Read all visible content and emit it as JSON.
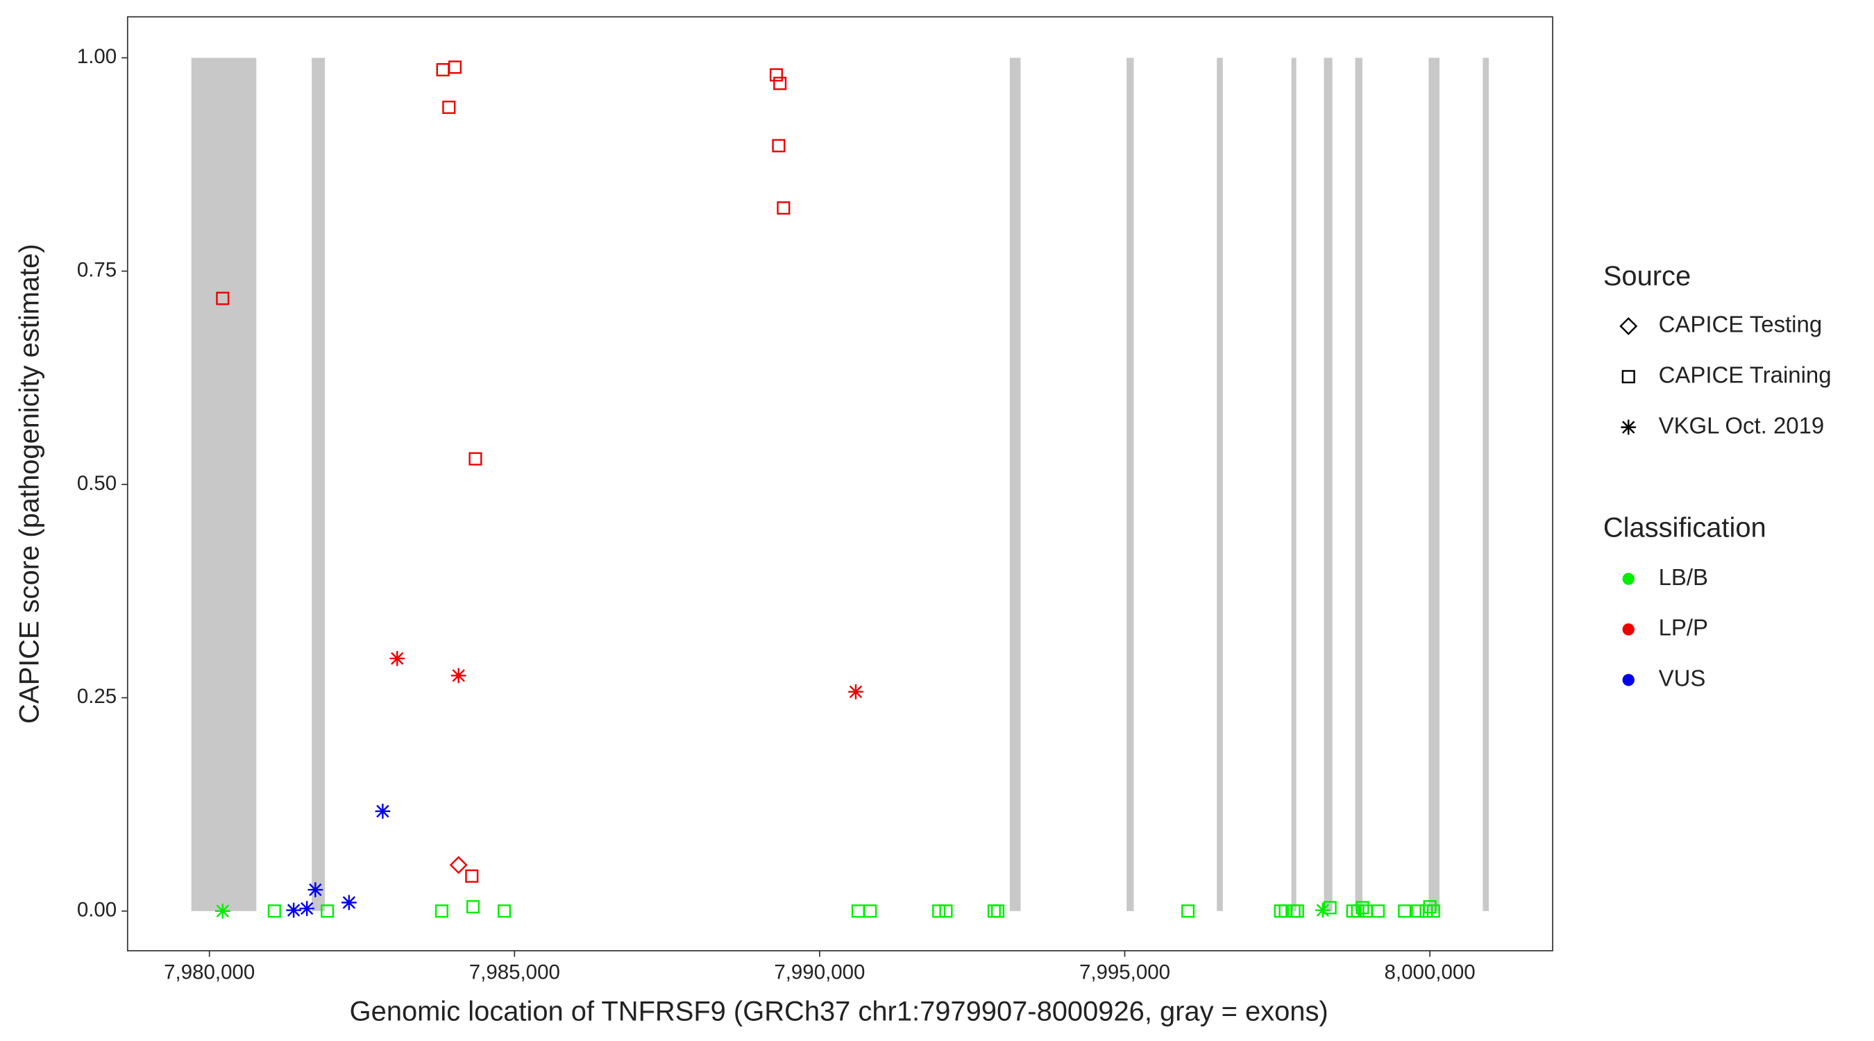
{
  "chart_data": {
    "type": "scatter",
    "x_label": "Genomic location of TNFRSF9 (GRCh37 chr1:7979907-8000926, gray = exons)",
    "y_label": "CAPICE score (pathogenicity estimate)",
    "xlim": [
      7978659,
      8002012
    ],
    "ylim": [
      -0.0465,
      1.048
    ],
    "xticks": [
      {
        "value": 7980000,
        "label": "7,980,000"
      },
      {
        "value": 7985000,
        "label": "7,985,000"
      },
      {
        "value": 7990000,
        "label": "7,990,000"
      },
      {
        "value": 7995000,
        "label": "7,995,000"
      },
      {
        "value": 8000000,
        "label": "8,000,000"
      }
    ],
    "yticks": [
      {
        "value": 0,
        "label": "0.00"
      },
      {
        "value": 0.25,
        "label": "0.25"
      },
      {
        "value": 0.5,
        "label": "0.50"
      },
      {
        "value": 0.75,
        "label": "0.75"
      },
      {
        "value": 1,
        "label": "1.00"
      }
    ],
    "exon_color": "#c8c8c8",
    "exons": [
      [
        7979704,
        7980769
      ],
      [
        7981677,
        7981893
      ],
      [
        7993116,
        7993294
      ],
      [
        7995030,
        7995148
      ],
      [
        7996509,
        7996607
      ],
      [
        7997732,
        7997811
      ],
      [
        7998264,
        7998402
      ],
      [
        7998777,
        7998895
      ],
      [
        7999980,
        8000158
      ],
      [
        8000868,
        8000966
      ]
    ],
    "source_title": "Source",
    "sources": [
      {
        "name": "CAPICE Testing",
        "shape": "diamond"
      },
      {
        "name": "CAPICE Training",
        "shape": "square"
      },
      {
        "name": "VKGL Oct. 2019",
        "shape": "asterisk"
      }
    ],
    "class_title": "Classification",
    "classes": [
      {
        "name": "LB/B",
        "color": "#00ee00"
      },
      {
        "name": "LP/P",
        "color": "#ee0000"
      },
      {
        "name": "VUS",
        "color": "#0000ee"
      }
    ],
    "series": [
      {
        "source": 1,
        "class": 1,
        "x": [
          7980217,
          7983826,
          7984024,
          7983925,
          7984359,
          7984300,
          7989290,
          7989349,
          7989329,
          7989408
        ],
        "values": [
          0.718,
          0.986,
          0.989,
          0.942,
          0.53,
          0.041,
          0.98,
          0.97,
          0.897,
          0.824
        ]
      },
      {
        "source": 0,
        "class": 1,
        "x": [
          7984083
        ],
        "values": [
          0.054
        ]
      },
      {
        "source": 2,
        "class": 1,
        "x": [
          7983077,
          7984083,
          7990592
        ],
        "values": [
          0.296,
          0.276,
          0.257
        ]
      },
      {
        "source": 2,
        "class": 2,
        "x": [
          7981381,
          7981598,
          7981736,
          7982288,
          7982840
        ],
        "values": [
          0.001,
          0.003,
          0.025,
          0.01,
          0.117
        ]
      },
      {
        "source": 2,
        "class": 0,
        "x": [
          7980217,
          7998245
        ],
        "values": [
          0,
          0.001
        ]
      },
      {
        "source": 1,
        "class": 0,
        "x": [
          7981065,
          7981933,
          7983807,
          7984320,
          7984832,
          7990631,
          7990828,
          7991953,
          7992071,
          7992860,
          7992919,
          7996036,
          7997554,
          7997633,
          7997771,
          7997830,
          7998363,
          7998738,
          7998817,
          7998896,
          7998955,
          7999152,
          7999586,
          7999803,
          7999941,
          8000000,
          8000059
        ],
        "values": [
          0,
          0,
          0,
          0.005,
          0,
          0,
          0,
          0,
          0,
          0,
          0,
          0,
          0,
          0,
          0,
          0,
          0.004,
          0,
          0,
          0.004,
          0,
          0,
          0,
          0,
          0,
          0.005,
          0
        ]
      }
    ]
  }
}
